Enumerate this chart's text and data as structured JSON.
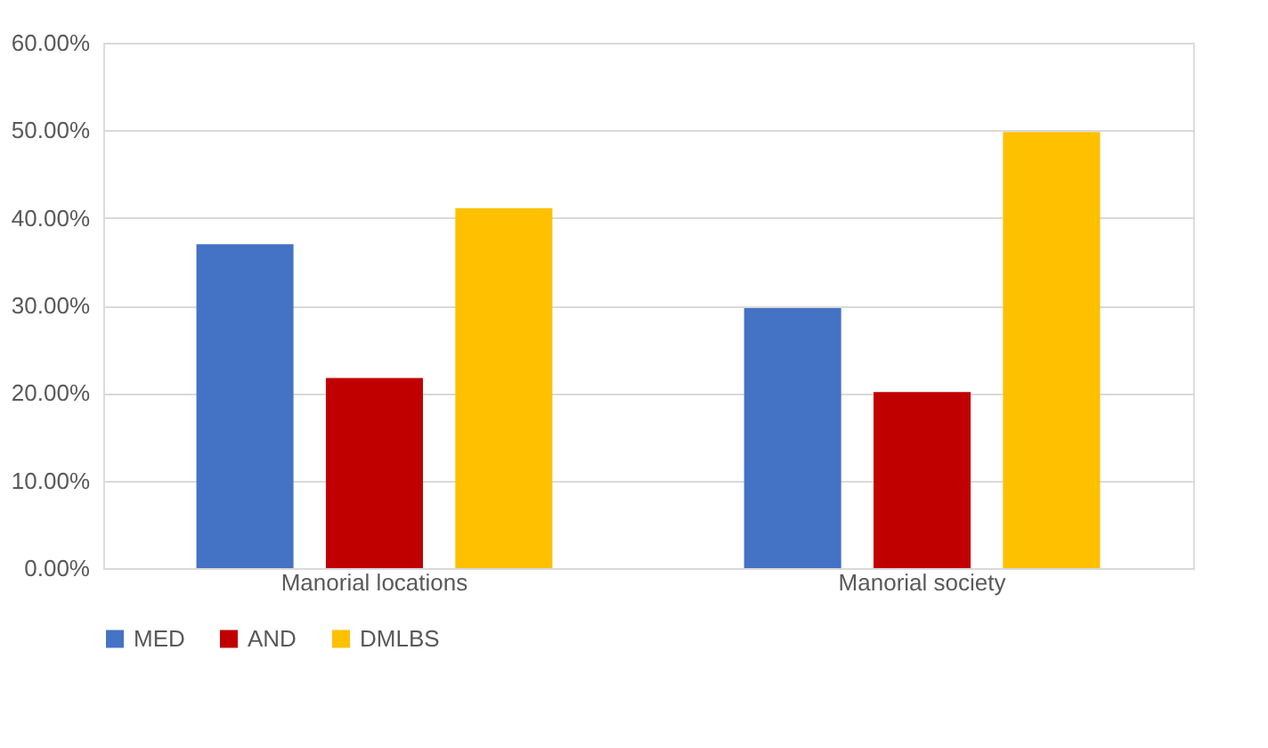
{
  "chart_data": {
    "type": "bar",
    "categories": [
      "Manorial locations",
      "Manorial society"
    ],
    "series": [
      {
        "name": "MED",
        "color": "#4472c4",
        "values": [
          37.0,
          29.7
        ]
      },
      {
        "name": "AND",
        "color": "#c00000",
        "values": [
          21.7,
          20.1
        ]
      },
      {
        "name": "DMLBS",
        "color": "#ffc000",
        "values": [
          41.1,
          49.8
        ]
      }
    ],
    "ylim": [
      0,
      60
    ],
    "yticks": [
      {
        "value": 0,
        "label": "0.00%"
      },
      {
        "value": 10,
        "label": "10.00%"
      },
      {
        "value": 20,
        "label": "20.00%"
      },
      {
        "value": 30,
        "label": "30.00%"
      },
      {
        "value": 40,
        "label": "40.00%"
      },
      {
        "value": 50,
        "label": "50.00%"
      },
      {
        "value": 60,
        "label": "60.00%"
      }
    ],
    "grid": "y",
    "legend": "bottom"
  }
}
